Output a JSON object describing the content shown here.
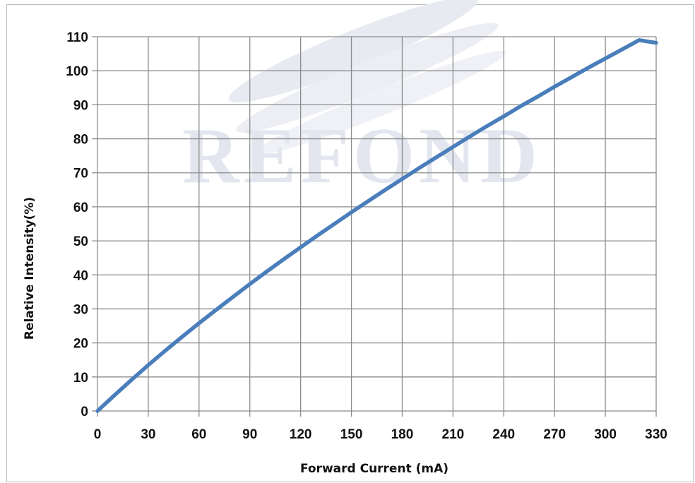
{
  "watermark": {
    "text": "REFOND",
    "color": "#e3e6ee"
  },
  "chart_data": {
    "type": "line",
    "title": "",
    "xlabel": "Forward Current (mA)",
    "ylabel": "Relative Intensity(%)",
    "xlim": [
      0,
      330
    ],
    "ylim": [
      0,
      110
    ],
    "xticks": [
      0,
      30,
      60,
      90,
      120,
      150,
      180,
      210,
      240,
      270,
      300,
      330
    ],
    "yticks": [
      0,
      10,
      20,
      30,
      40,
      50,
      60,
      70,
      80,
      90,
      100,
      110
    ],
    "grid": true,
    "legend": "none",
    "series": [
      {
        "color": "#4a7ebb",
        "x": [
          0,
          10,
          20,
          30,
          40,
          50,
          60,
          70,
          80,
          90,
          100,
          110,
          120,
          130,
          140,
          150,
          160,
          170,
          180,
          190,
          200,
          210,
          220,
          230,
          240,
          250,
          260,
          270,
          280,
          290,
          300,
          310,
          320,
          330
        ],
        "y": [
          0,
          4.6,
          9.1,
          13.5,
          17.7,
          21.8,
          25.8,
          29.7,
          33.5,
          37.3,
          41.0,
          44.6,
          48.1,
          51.6,
          55.0,
          58.4,
          61.7,
          65.0,
          68.2,
          71.4,
          74.5,
          77.6,
          80.7,
          83.7,
          86.6,
          89.6,
          92.4,
          95.3,
          98.1,
          100.9,
          103.6,
          106.3,
          109.0,
          108.2
        ]
      }
    ]
  }
}
